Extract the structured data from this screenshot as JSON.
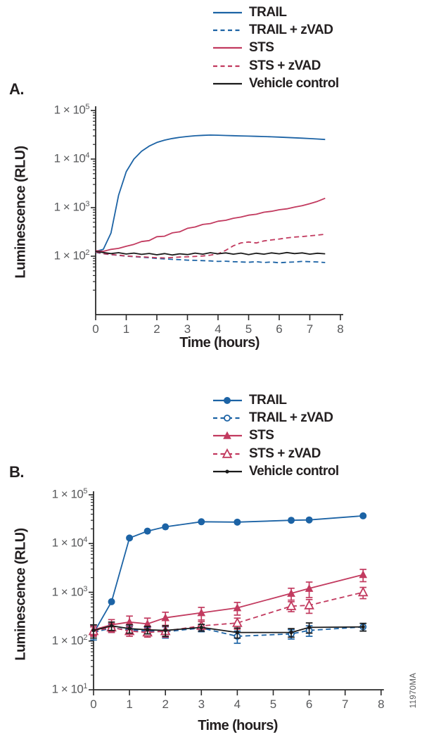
{
  "figure": {
    "watermark": "11970MA",
    "colors": {
      "trail_blue": "#1c63a5",
      "sts_red": "#c23a5f",
      "vehicle_black": "#1a1a1a",
      "tick_gray": "#58595b",
      "axis_dark": "#2b2b2b"
    }
  },
  "chart_data": [
    {
      "panel_label": "A.",
      "type": "line",
      "xlabel": "Time (hours)",
      "ylabel": "Luminescence (RLU)",
      "x_ticks": [
        0,
        1,
        2,
        3,
        4,
        5,
        6,
        7,
        8
      ],
      "xlim": [
        0,
        8
      ],
      "y_scale": "log",
      "y_tick_prefix": "1 × 10",
      "y_tick_exponents": [
        5,
        4,
        3,
        2
      ],
      "ylim_exponents": [
        1,
        5
      ],
      "legend_position": "top-right",
      "grid": false,
      "x": [
        0,
        0.25,
        0.5,
        0.75,
        1,
        1.25,
        1.5,
        1.75,
        2,
        2.25,
        2.5,
        2.75,
        3,
        3.25,
        3.5,
        3.75,
        4,
        4.25,
        4.5,
        4.75,
        5,
        5.25,
        5.5,
        5.75,
        6,
        6.25,
        6.5,
        6.75,
        7,
        7.25,
        7.5
      ],
      "series": [
        {
          "name": "TRAIL",
          "color_key": "trail_blue",
          "dash": false,
          "marker": "none",
          "values": [
            125,
            138,
            300,
            1800,
            5500,
            10000,
            14500,
            18500,
            22000,
            24500,
            26500,
            28000,
            29200,
            30200,
            30800,
            31200,
            31000,
            30600,
            30300,
            30000,
            29700,
            29400,
            29100,
            28700,
            28300,
            27900,
            27400,
            26900,
            26400,
            25900,
            25300
          ]
        },
        {
          "name": "TRAIL + zVAD",
          "color_key": "trail_blue",
          "dash": true,
          "marker": "none",
          "values": [
            120,
            112,
            108,
            104,
            100,
            98,
            95,
            93,
            90,
            88,
            86,
            85,
            83,
            82,
            81,
            80,
            78,
            79,
            77,
            76,
            75,
            77,
            74,
            76,
            73,
            75,
            76,
            78,
            77,
            76,
            74
          ]
        },
        {
          "name": "STS",
          "color_key": "sts_red",
          "dash": false,
          "marker": "none",
          "values": [
            130,
            126,
            138,
            145,
            160,
            175,
            200,
            210,
            252,
            258,
            302,
            318,
            375,
            400,
            450,
            470,
            525,
            548,
            605,
            640,
            700,
            730,
            805,
            840,
            905,
            945,
            1025,
            1095,
            1205,
            1345,
            1560
          ]
        },
        {
          "name": "STS + zVAD",
          "color_key": "sts_red",
          "dash": true,
          "marker": "none",
          "values": [
            122,
            113,
            108,
            105,
            101,
            99,
            97,
            95,
            93,
            92,
            94,
            96,
            97,
            99,
            101,
            105,
            112,
            132,
            164,
            188,
            196,
            187,
            206,
            216,
            226,
            238,
            248,
            254,
            262,
            272,
            283
          ]
        },
        {
          "name": "Vehicle control",
          "color_key": "vehicle_black",
          "dash": false,
          "marker": "none",
          "values": [
            126,
            119,
            113,
            118,
            111,
            116,
            109,
            114,
            107,
            113,
            106,
            112,
            108,
            116,
            110,
            118,
            112,
            117,
            110,
            116,
            108,
            115,
            110,
            117,
            112,
            119,
            113,
            117,
            110,
            115,
            112
          ]
        }
      ]
    },
    {
      "panel_label": "B.",
      "type": "scatter-line",
      "xlabel": "Time (hours)",
      "ylabel": "Luminescence (RLU)",
      "x_ticks": [
        0,
        1,
        2,
        3,
        4,
        5,
        6,
        7,
        8
      ],
      "xlim": [
        0,
        8
      ],
      "y_scale": "log",
      "y_tick_prefix": "1 × 10",
      "y_tick_exponents": [
        5,
        4,
        3,
        2,
        1
      ],
      "ylim_exponents": [
        1,
        5
      ],
      "legend_position": "top-right",
      "grid": false,
      "x": [
        0,
        0.5,
        1,
        1.5,
        2,
        3,
        4,
        5.5,
        6,
        7.5
      ],
      "series": [
        {
          "name": "TRAIL",
          "color_key": "trail_blue",
          "dash": false,
          "marker": "circle-filled",
          "values": [
            145,
            640,
            13000,
            18000,
            22000,
            28000,
            27500,
            30000,
            30500,
            37000
          ],
          "errors": [
            0,
            0,
            0,
            0,
            0,
            0,
            0,
            0,
            0,
            0
          ]
        },
        {
          "name": "TRAIL + zVAD",
          "color_key": "trail_blue",
          "dash": true,
          "marker": "circle-open",
          "values": [
            150,
            185,
            170,
            160,
            155,
            185,
            125,
            140,
            165,
            195
          ],
          "errors": [
            45,
            35,
            30,
            30,
            40,
            30,
            35,
            30,
            40,
            35
          ]
        },
        {
          "name": "STS",
          "color_key": "sts_red",
          "dash": false,
          "marker": "triangle-filled",
          "values": [
            170,
            215,
            245,
            225,
            300,
            380,
            480,
            950,
            1200,
            2300
          ],
          "errors": [
            40,
            60,
            80,
            70,
            90,
            110,
            140,
            260,
            420,
            650
          ]
        },
        {
          "name": "STS + zVAD",
          "color_key": "sts_red",
          "dash": true,
          "marker": "triangle-open",
          "values": [
            160,
            190,
            160,
            150,
            160,
            205,
            235,
            520,
            540,
            1000
          ],
          "errors": [
            35,
            40,
            35,
            30,
            40,
            45,
            60,
            120,
            170,
            260
          ]
        },
        {
          "name": "Vehicle control",
          "color_key": "vehicle_black",
          "dash": false,
          "marker": "dot",
          "values": [
            165,
            205,
            180,
            170,
            165,
            190,
            150,
            150,
            190,
            195
          ],
          "errors": [
            50,
            40,
            35,
            30,
            40,
            30,
            35,
            30,
            45,
            35
          ]
        }
      ]
    }
  ]
}
